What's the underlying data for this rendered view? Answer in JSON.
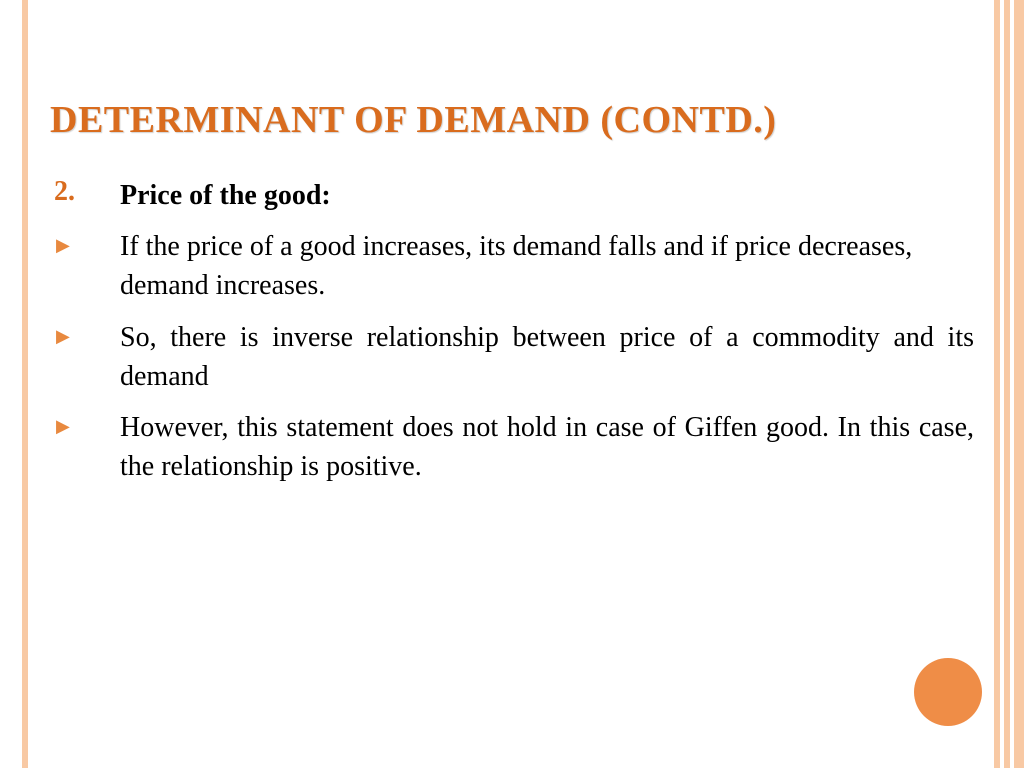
{
  "slide": {
    "title": "DETERMINANT OF DEMAND (CONTD.)",
    "number_marker": "2.",
    "heading": "Price of the good:",
    "bullets": [
      "If the price of a good increases, its demand falls and if price decreases, demand increases.",
      "So, there is inverse relationship between price of a commodity and its demand",
      "However, this statement does not hold in case of Giffen good. In this case, the relationship is positive."
    ]
  },
  "style": {
    "title_color": "#d96c1e",
    "accent_color": "#e8893f",
    "border_color": "#f8c9a4",
    "circle_color": "#ef8d47",
    "text_color": "#000000",
    "background_color": "#ffffff",
    "title_fontsize": 38,
    "body_fontsize": 28
  }
}
